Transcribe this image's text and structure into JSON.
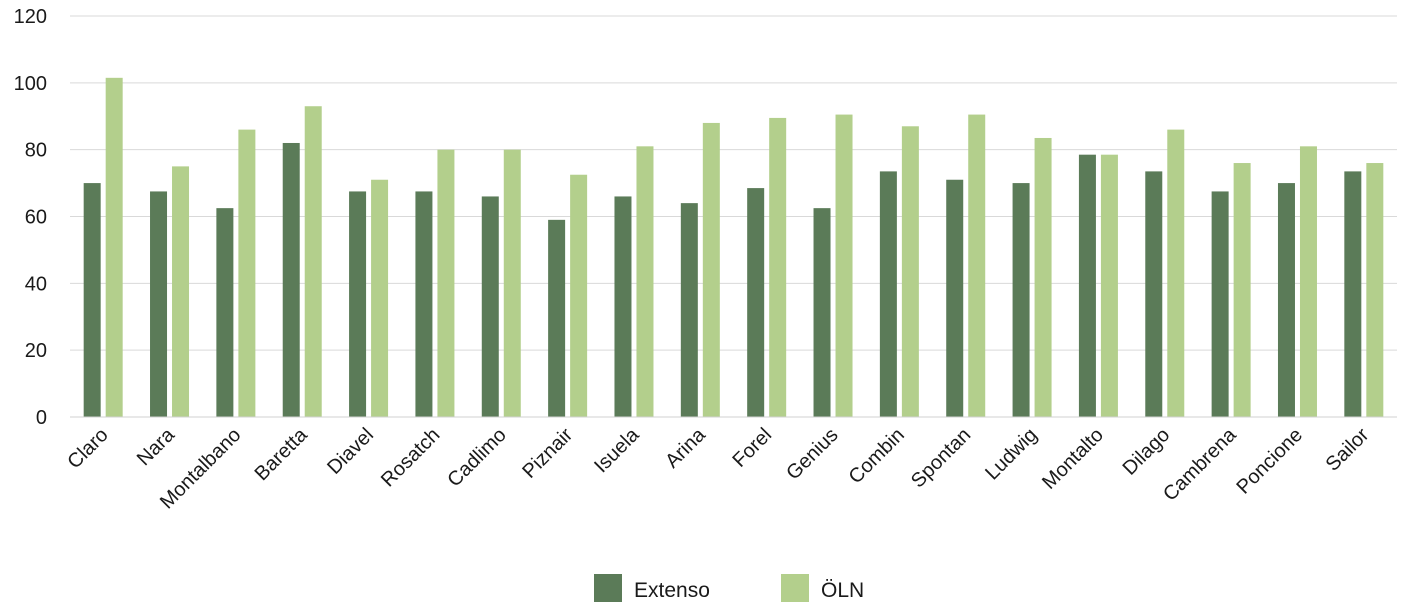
{
  "chart_data": {
    "type": "bar",
    "categories": [
      "Claro",
      "Nara",
      "Montalbano",
      "Baretta",
      "Diavel",
      "Rosatch",
      "Cadlimo",
      "Piznair",
      "Isuela",
      "Arina",
      "Forel",
      "Genius",
      "Combin",
      "Spontan",
      "Ludwig",
      "Montalto",
      "Dilago",
      "Cambrena",
      "Poncione",
      "Sailor"
    ],
    "series": [
      {
        "name": "Extenso",
        "color": "#5b7b58",
        "values": [
          70,
          67.5,
          62.5,
          82,
          67.5,
          67.5,
          66,
          59,
          66,
          64,
          68.5,
          62.5,
          73.5,
          71,
          70,
          78.5,
          73.5,
          67.5,
          70,
          73.5
        ]
      },
      {
        "name": "ÖLN",
        "color": "#b3cf8c",
        "values": [
          101.5,
          75,
          86,
          93,
          71,
          80,
          80,
          72.5,
          81,
          88,
          89.5,
          90.5,
          87,
          90.5,
          83.5,
          78.5,
          86,
          76,
          81,
          76
        ]
      }
    ],
    "yticks": [
      0,
      20,
      40,
      60,
      80,
      100,
      120
    ],
    "ylim": [
      0,
      120
    ],
    "grid": true,
    "legend_position": "bottom-center"
  }
}
